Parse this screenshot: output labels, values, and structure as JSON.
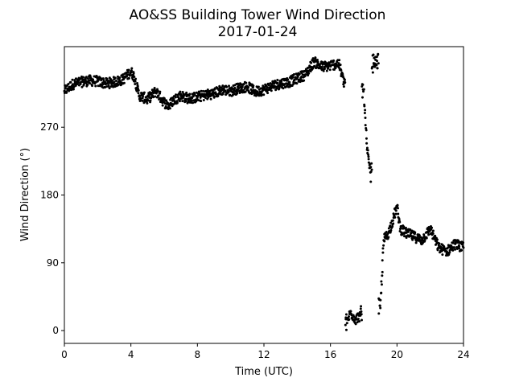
{
  "chart_data": {
    "type": "scatter",
    "title": "AO&SS Building Tower Wind Direction",
    "subtitle": "2017-01-24",
    "xlabel": "Time (UTC)",
    "ylabel": "Wind Direction (°)",
    "xlim": [
      0,
      24
    ],
    "ylim": [
      -17,
      377
    ],
    "xticks": [
      0,
      4,
      8,
      12,
      16,
      20,
      24
    ],
    "yticks": [
      0,
      90,
      180,
      270
    ],
    "grid": false,
    "marker_color": "#000000",
    "series": [
      {
        "x": [
          0.0,
          0.5,
          1.0,
          1.5,
          2.0,
          2.5,
          3.0,
          3.5,
          4.0,
          4.2,
          4.5,
          5.0,
          5.5,
          6.0,
          6.3,
          6.5,
          7.0,
          7.5,
          8.0,
          8.5,
          9.0,
          9.5,
          10.0,
          10.5,
          11.0,
          11.5,
          12.0,
          12.5,
          13.0,
          13.5,
          14.0,
          14.5,
          15.0,
          15.5,
          16.0,
          16.5,
          16.8,
          17.0,
          17.2,
          17.5,
          17.8,
          18.0,
          18.2,
          18.4,
          18.6,
          18.8,
          19.0,
          19.2,
          19.5,
          19.8,
          20.0,
          20.2,
          20.5,
          21.0,
          21.5,
          22.0,
          22.5,
          23.0,
          23.5,
          24.0
        ],
        "y": [
          318,
          327,
          330,
          332,
          331,
          328,
          330,
          333,
          344,
          337,
          312,
          307,
          318,
          303,
          298,
          305,
          312,
          308,
          310,
          313,
          315,
          320,
          318,
          322,
          324,
          317,
          320,
          325,
          328,
          330,
          335,
          340,
          357,
          350,
          352,
          355,
          330,
          10,
          25,
          15,
          20,
          320,
          240,
          210,
          355,
          358,
          30,
          120,
          130,
          150,
          165,
          135,
          130,
          125,
          120,
          135,
          110,
          105,
          115,
          110
        ]
      }
    ]
  }
}
